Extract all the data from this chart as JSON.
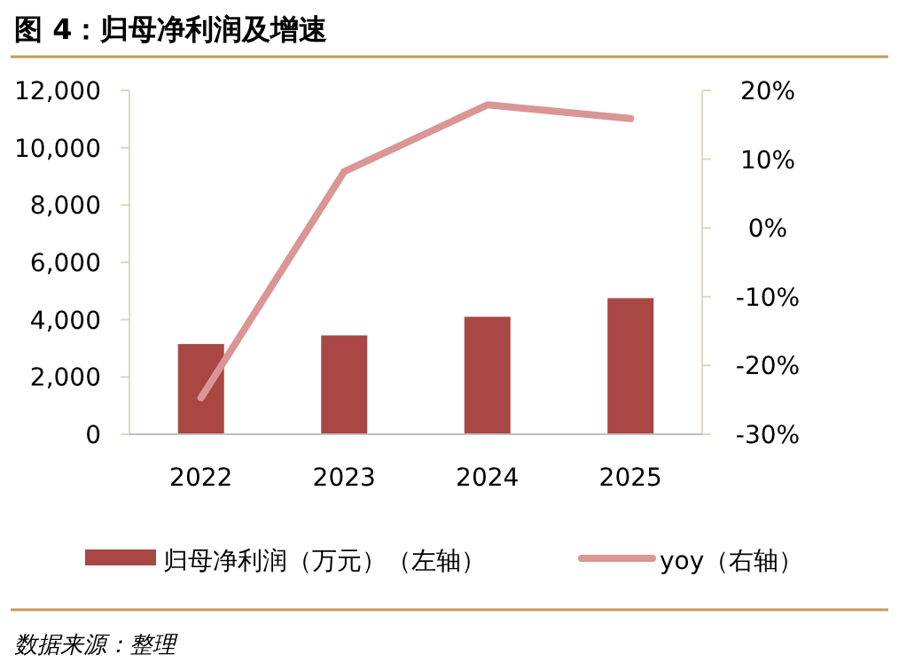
{
  "chart_data": {
    "type": "bar",
    "title": "图 4：归母净利润及增速",
    "categories": [
      "2022",
      "2023",
      "2024",
      "2025"
    ],
    "series": [
      {
        "name": "归母净利润（万元）（左轴）",
        "color": "#a94744",
        "values": [
          3150,
          3450,
          4100,
          4750
        ]
      },
      {
        "name": "yoy（右轴）",
        "type": "line",
        "axis": "y2",
        "color": "#d99694",
        "values": [
          -24.7,
          8.2,
          17.9,
          15.9
        ],
        "marker": "none",
        "line_style": "solid"
      }
    ],
    "ylim": [
      0,
      12000
    ],
    "yticks": [
      {
        "value": 0,
        "label": "0"
      },
      {
        "value": 2000,
        "label": "2,000"
      },
      {
        "value": 4000,
        "label": "4,000"
      },
      {
        "value": 6000,
        "label": "6,000"
      },
      {
        "value": 8000,
        "label": "8,000"
      },
      {
        "value": 10000,
        "label": "10,000"
      },
      {
        "value": 12000,
        "label": "12,000"
      }
    ],
    "y2lim": [
      -30,
      20
    ],
    "y2ticks": [
      {
        "value": -30,
        "label": "-30%"
      },
      {
        "value": -20,
        "label": "-20%"
      },
      {
        "value": -10,
        "label": "-10%"
      },
      {
        "value": 0,
        "label": "0%"
      },
      {
        "value": 10,
        "label": "10%"
      },
      {
        "value": 20,
        "label": "20%"
      }
    ],
    "grid": false,
    "legend": "bottom",
    "annotations": [
      "数据来源：整理"
    ]
  }
}
